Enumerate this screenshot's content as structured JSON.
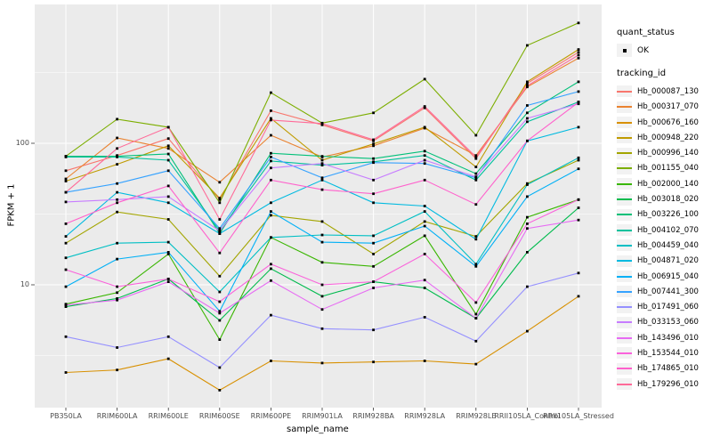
{
  "chart_data": {
    "type": "line",
    "title": "",
    "xlabel": "sample_name",
    "ylabel": "FPKM + 1",
    "y_scale": "log10",
    "ylim": [
      1.35,
      958
    ],
    "grid": "major-and-minor, white on gray panel",
    "legend_position": "right",
    "y_ticks": [
      {
        "value": 100,
        "label": "100"
      },
      {
        "value": 10,
        "label": "10"
      }
    ],
    "y_minor_gridlines": [
      316.23,
      31.623,
      3.1623
    ],
    "categories": [
      "PB350LA",
      "RRIM600LA",
      "RRIM600LE",
      "RRIM600SE",
      "RRIM600PE",
      "RRIM901LA",
      "RRIM928BA",
      "RRIM928LA",
      "RRIM928LE",
      "RRII105LA_Control",
      "RRII105LA_Stressed"
    ],
    "point": {
      "shape": "square",
      "color": "#000000",
      "size": 3
    },
    "series": [
      {
        "name": "Hb_000087_130",
        "color": "#F8766D",
        "values": [
          64,
          82,
          108,
          40,
          170,
          135,
          104,
          178,
          78,
          265,
          440
        ]
      },
      {
        "name": "Hb_000317_070",
        "color": "#EA8331",
        "values": [
          56,
          109,
          92,
          53,
          114,
          80,
          96,
          128,
          82,
          250,
          400
        ]
      },
      {
        "name": "Hb_000676_160",
        "color": "#D89000",
        "values": [
          2.4,
          2.5,
          3.0,
          1.8,
          2.9,
          2.8,
          2.85,
          2.9,
          2.75,
          4.7,
          8.3
        ]
      },
      {
        "name": "Hb_000948_220",
        "color": "#C09B00",
        "values": [
          54,
          71,
          96,
          41,
          150,
          76,
          99,
          130,
          68,
          272,
          460
        ]
      },
      {
        "name": "Hb_000996_140",
        "color": "#A3A500",
        "values": [
          19.7,
          32.7,
          29,
          11.5,
          31,
          28,
          16.5,
          28,
          22,
          52,
          76
        ]
      },
      {
        "name": "Hb_001155_040",
        "color": "#7CAE00",
        "values": [
          81,
          148,
          130,
          38,
          228,
          139,
          164,
          284,
          114,
          492,
          708
        ]
      },
      {
        "name": "Hb_002000_140",
        "color": "#39B600",
        "values": [
          7.3,
          8.8,
          16.5,
          4.1,
          21.6,
          14.4,
          13.5,
          22.2,
          6.2,
          30,
          40
        ]
      },
      {
        "name": "Hb_003018_020",
        "color": "#00BB4E",
        "values": [
          7.0,
          8.0,
          11,
          5.6,
          13,
          8.3,
          10.5,
          9.5,
          5.8,
          17,
          35
        ]
      },
      {
        "name": "Hb_003226_100",
        "color": "#00C078",
        "values": [
          81,
          81,
          84,
          23,
          85,
          81,
          78,
          88,
          61,
          164,
          272
        ]
      },
      {
        "name": "Hb_004102_070",
        "color": "#00C19C",
        "values": [
          80,
          80,
          76,
          24,
          75,
          70,
          74,
          82,
          55,
          142,
          196
        ]
      },
      {
        "name": "Hb_004459_040",
        "color": "#00BFC4",
        "values": [
          15.5,
          19.7,
          20,
          8.9,
          21.6,
          22.5,
          22.2,
          33,
          14,
          51,
          79
        ]
      },
      {
        "name": "Hb_004871_020",
        "color": "#00BAE0",
        "values": [
          22,
          45,
          38,
          23,
          38,
          55,
          38,
          36,
          21,
          104,
          130
        ]
      },
      {
        "name": "Hb_006915_040",
        "color": "#00B0F6",
        "values": [
          9.7,
          15.2,
          17,
          6.5,
          33,
          20,
          19.7,
          26,
          13.5,
          42,
          66
        ]
      },
      {
        "name": "Hb_007441_300",
        "color": "#35A2FF",
        "values": [
          45,
          52,
          64,
          25,
          80,
          57,
          73,
          72,
          57,
          185,
          232
        ]
      },
      {
        "name": "Hb_017491_060",
        "color": "#9590FF",
        "values": [
          4.3,
          3.6,
          4.3,
          2.6,
          6.1,
          4.9,
          4.8,
          5.9,
          4.0,
          9.7,
          12.1
        ]
      },
      {
        "name": "Hb_033153_060",
        "color": "#C77CFF",
        "values": [
          38.5,
          40,
          42,
          24,
          67,
          72,
          55,
          76,
          58,
          150,
          190
        ]
      },
      {
        "name": "Hb_143496_010",
        "color": "#E76BF3",
        "values": [
          7.2,
          7.8,
          10.5,
          6.3,
          10.7,
          6.7,
          9.5,
          10.8,
          5.8,
          25,
          28.7
        ]
      },
      {
        "name": "Hb_153544_010",
        "color": "#FA62DB",
        "values": [
          12.8,
          9.7,
          11,
          7.6,
          14,
          10,
          10.5,
          16.5,
          7.5,
          27,
          40
        ]
      },
      {
        "name": "Hb_174865_010",
        "color": "#FF61CC",
        "values": [
          27,
          38,
          50,
          16.8,
          55,
          47,
          44,
          55,
          37,
          104,
          195
        ]
      },
      {
        "name": "Hb_179296_010",
        "color": "#FF6A98",
        "values": [
          45,
          92,
          130,
          29,
          146,
          138,
          106,
          182,
          80,
          255,
          420
        ]
      }
    ]
  },
  "legend": {
    "quant_status": {
      "title": "quant_status",
      "items": [
        {
          "label": "OK"
        }
      ]
    },
    "tracking": {
      "title": "tracking_id"
    }
  },
  "theme": {
    "panel_bg": "#EBEBEB",
    "grid_color": "#FFFFFF",
    "tick_text_color": "#4D4D4D",
    "axis_title_color": "#000000",
    "legend_key_bg": "#F2F2F2",
    "point_color": "#000000"
  }
}
